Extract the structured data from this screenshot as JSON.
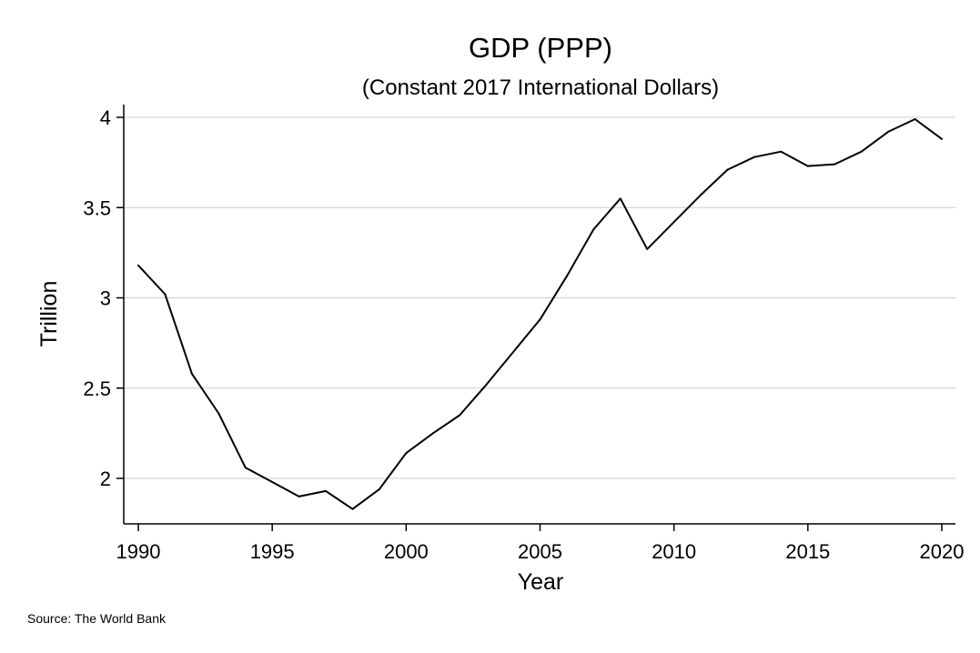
{
  "chart_data": {
    "type": "line",
    "title": "GDP (PPP)",
    "subtitle": "(Constant 2017 International Dollars)",
    "xlabel": "Year",
    "ylabel": "Trillion",
    "source": "Source: The World Bank",
    "xlim": [
      1990,
      2020
    ],
    "ylim": [
      1.75,
      4.05
    ],
    "xticks": [
      1990,
      1995,
      2000,
      2005,
      2010,
      2015,
      2020
    ],
    "xtick_labels": [
      "1990",
      "1995",
      "2000",
      "2005",
      "2010",
      "2015",
      "2020"
    ],
    "yticks": [
      2,
      2.5,
      3,
      3.5,
      4
    ],
    "ytick_labels": [
      "2",
      "2.5",
      "3",
      "3.5",
      "4"
    ],
    "grid": true,
    "line_color": "#000000",
    "grid_color": "#cccccc",
    "series": [
      {
        "x": [
          1990,
          1991,
          1992,
          1993,
          1994,
          1995,
          1996,
          1997,
          1998,
          1999,
          2000,
          2001,
          2002,
          2003,
          2004,
          2005,
          2006,
          2007,
          2008,
          2009,
          2010,
          2011,
          2012,
          2013,
          2014,
          2015,
          2016,
          2017,
          2018,
          2019,
          2020
        ],
        "values": [
          3.18,
          3.02,
          2.58,
          2.36,
          2.06,
          1.98,
          1.9,
          1.93,
          1.83,
          1.94,
          2.14,
          2.25,
          2.35,
          2.52,
          2.7,
          2.88,
          3.12,
          3.38,
          3.55,
          3.27,
          3.42,
          3.57,
          3.71,
          3.78,
          3.81,
          3.73,
          3.74,
          3.81,
          3.92,
          3.99,
          3.88
        ]
      }
    ]
  }
}
